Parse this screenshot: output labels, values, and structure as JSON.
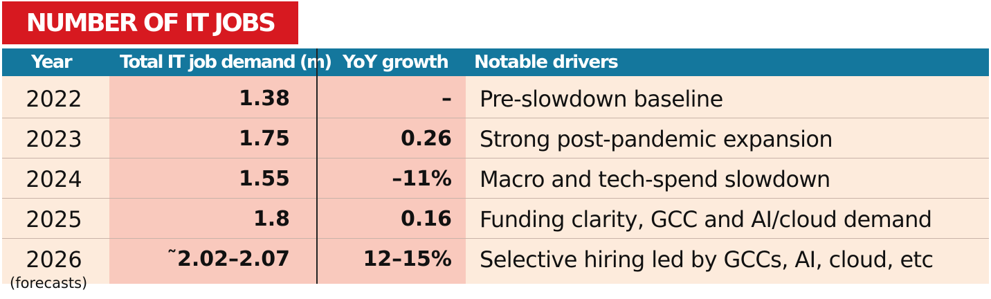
{
  "title": "NUMBER OF IT JOBS",
  "colors": {
    "title_bg": "#d71920",
    "header_bg": "#14779d",
    "row_bg": "#fdebdc",
    "highlight_bg": "#f9c9bd"
  },
  "chart_data": {
    "type": "table",
    "title": "NUMBER OF IT JOBS",
    "columns": [
      "Year",
      "Total IT job demand (m)",
      "YoY growth",
      "Notable drivers"
    ],
    "rows": [
      {
        "year": "2022",
        "demand": "1.38",
        "growth": "–",
        "driver": "Pre-slowdown baseline"
      },
      {
        "year": "2023",
        "demand": "1.75",
        "growth": "0.26",
        "driver": "Strong post-pandemic expansion"
      },
      {
        "year": "2024",
        "demand": "1.55",
        "growth": "–11%",
        "driver": "Macro and tech-spend slowdown"
      },
      {
        "year": "2025",
        "demand": "1.8",
        "growth": "0.16",
        "driver": "Funding clarity, GCC and AI/cloud demand"
      },
      {
        "year": "2026",
        "demand": "˜2.02–2.07",
        "growth": "12–15%",
        "driver": "Selective hiring led by GCCs, AI, cloud, etc"
      }
    ],
    "year_note": "(forecasts)"
  }
}
